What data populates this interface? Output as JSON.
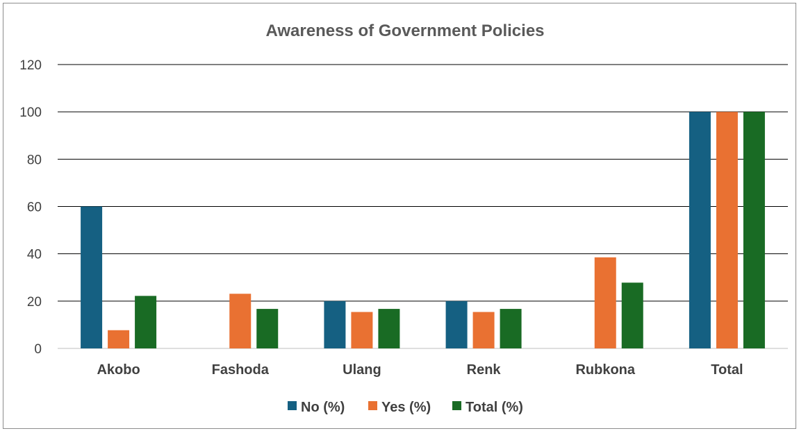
{
  "chart_data": {
    "type": "bar",
    "title": "Awareness of Government Policies",
    "categories": [
      "Akobo",
      "Fashoda",
      "Ulang",
      "Renk",
      "Rubkona",
      "Total"
    ],
    "series": [
      {
        "name": "No (%)",
        "color": "#156082",
        "values": [
          60,
          0,
          20,
          20,
          0,
          100
        ]
      },
      {
        "name": "Yes (%)",
        "color": "#e97132",
        "values": [
          7.7,
          23.1,
          15.4,
          15.4,
          38.5,
          100
        ]
      },
      {
        "name": "Total (%)",
        "color": "#196b24",
        "values": [
          22.2,
          16.7,
          16.7,
          16.7,
          27.8,
          100
        ]
      }
    ],
    "ylim": [
      0,
      120
    ],
    "yticks": [
      0,
      20,
      40,
      60,
      80,
      100,
      120
    ],
    "grid": true,
    "legend": "bottom"
  }
}
